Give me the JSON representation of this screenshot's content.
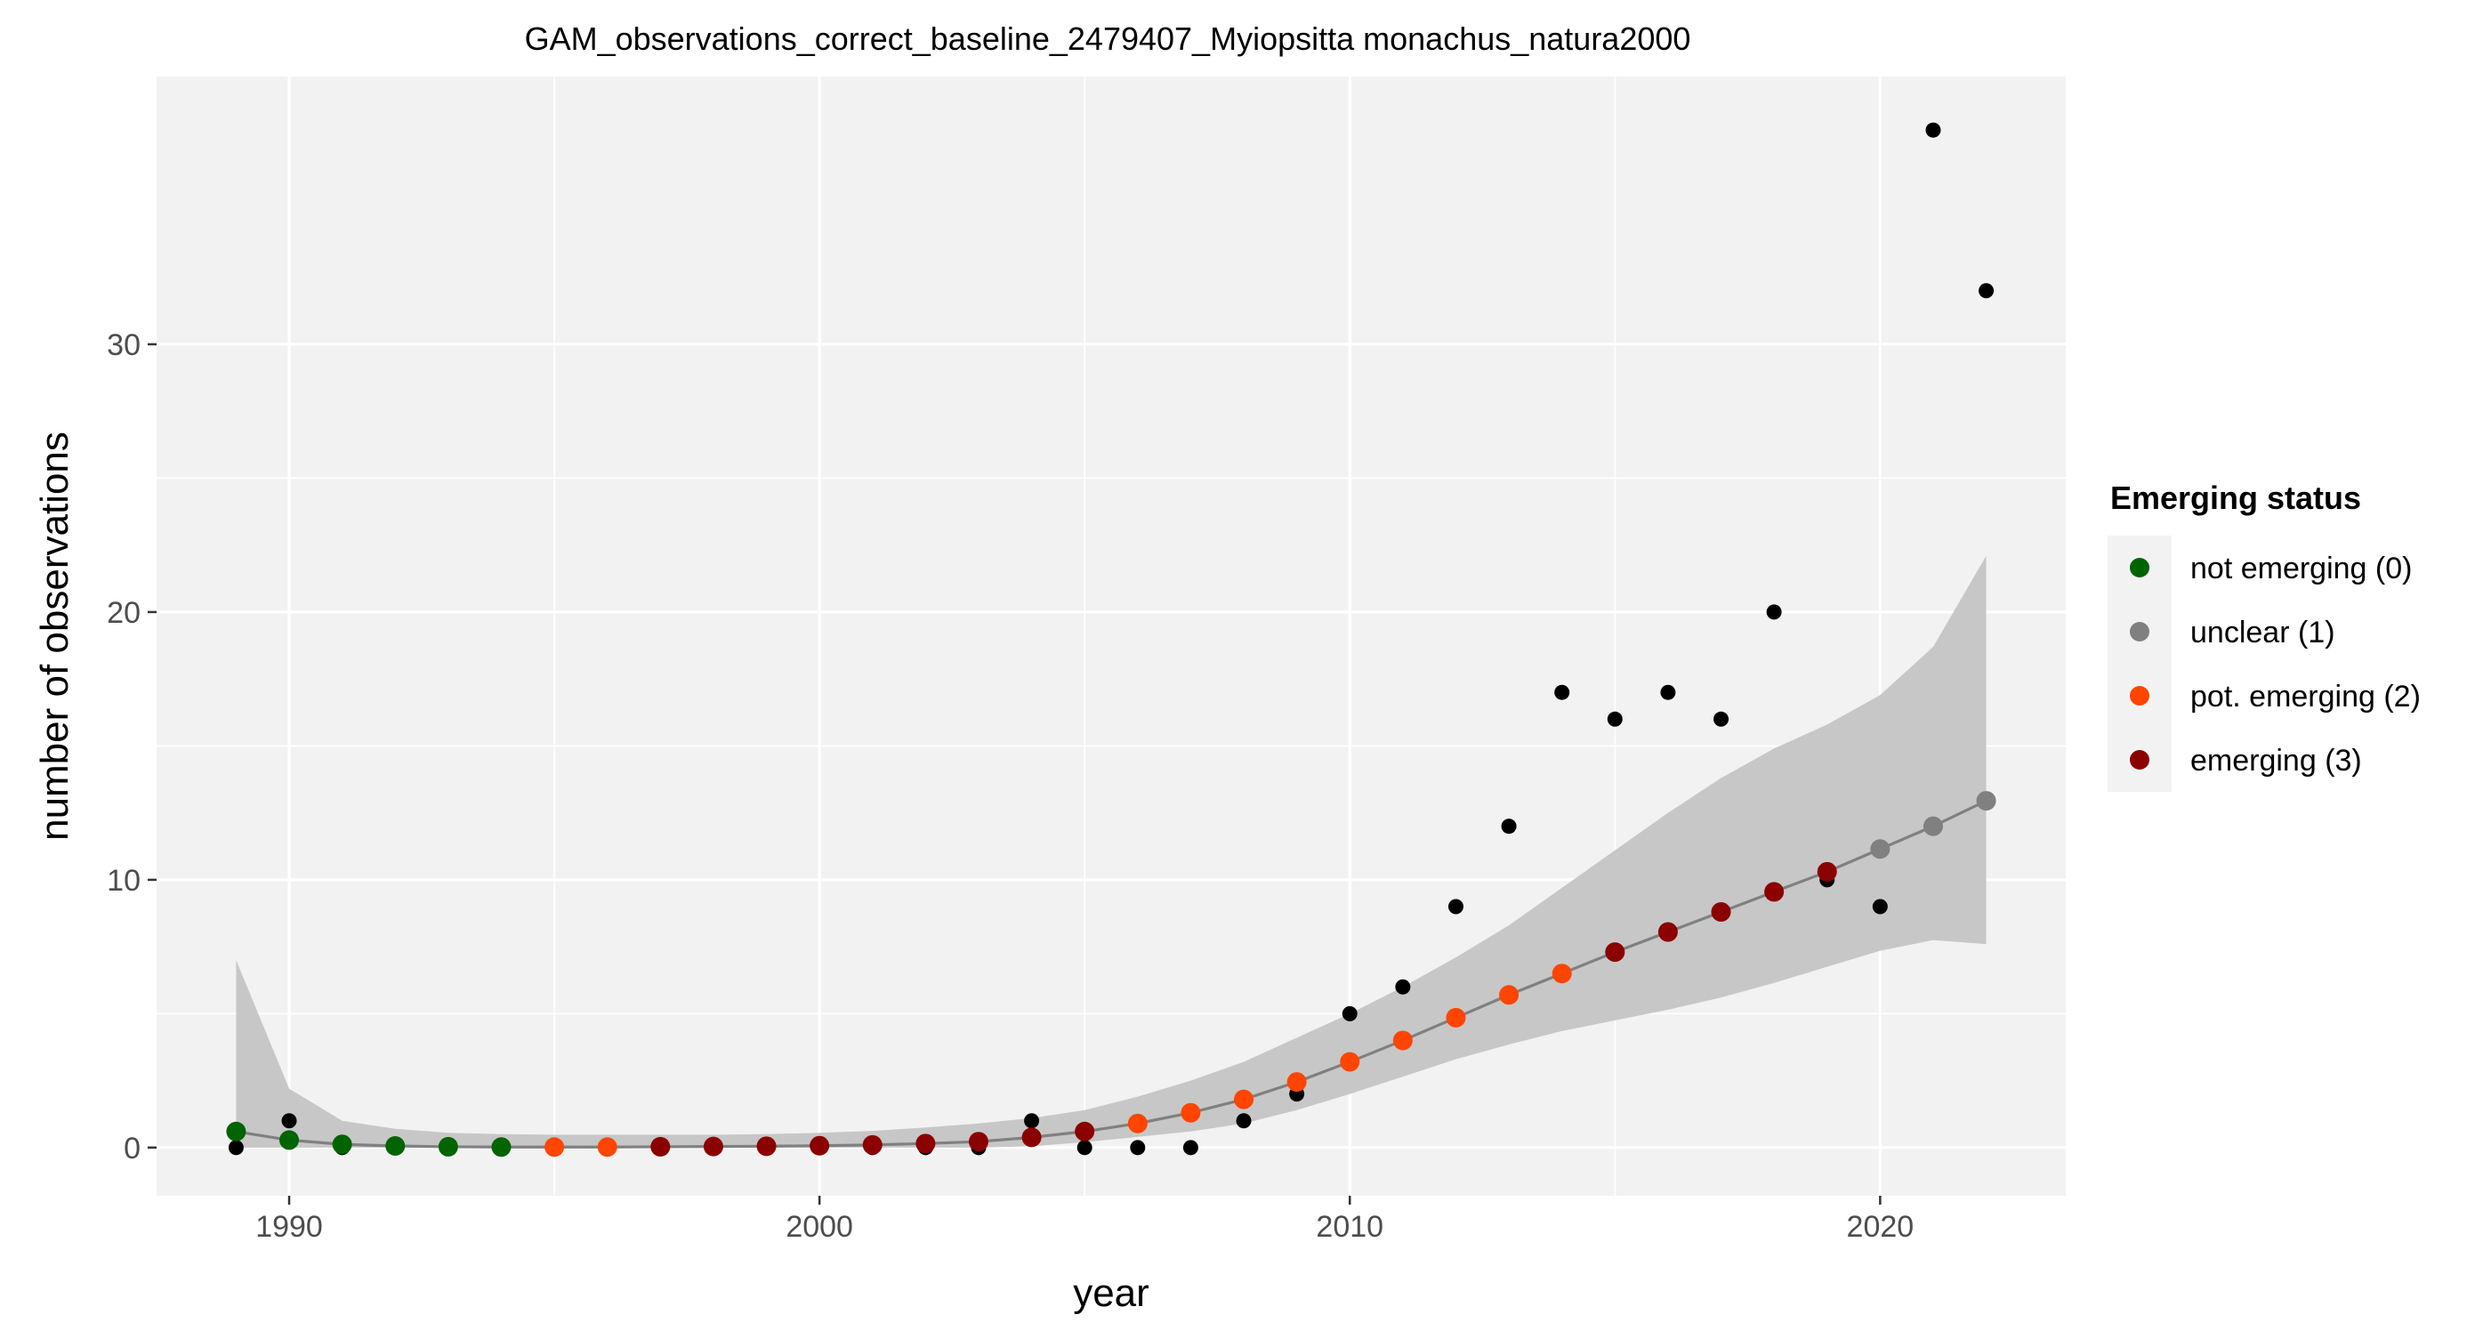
{
  "chart_data": {
    "type": "scatter",
    "title": "GAM_observations_correct_baseline_2479407_Myiopsitta monachus_natura2000",
    "xlabel": "year",
    "ylabel": "number of observations",
    "xlim": [
      1987.5,
      2023.5
    ],
    "ylim": [
      -1.8,
      40
    ],
    "x_ticks": [
      1990,
      2000,
      2010,
      2020
    ],
    "y_ticks": [
      0,
      10,
      20,
      30
    ],
    "grid": true,
    "legend": {
      "title": "Emerging status",
      "position": "right",
      "entries": [
        {
          "label": "not emerging (0)",
          "color": "#006400"
        },
        {
          "label": "unclear (1)",
          "color": "#808080"
        },
        {
          "label": "pot. emerging (2)",
          "color": "#FF4500"
        },
        {
          "label": "emerging (3)",
          "color": "#8B0000"
        }
      ]
    },
    "colors": {
      "panel_background": "#F2F2F2",
      "grid_major": "#FFFFFF",
      "ribbon": "#C4C4C4",
      "fit_line": "#808080",
      "observed_points": "#000000"
    },
    "observed": {
      "x": [
        1989,
        1990,
        1991,
        1992,
        1993,
        1994,
        1995,
        1996,
        1997,
        1998,
        1999,
        2000,
        2001,
        2002,
        2003,
        2004,
        2005,
        2006,
        2007,
        2008,
        2009,
        2010,
        2011,
        2012,
        2013,
        2014,
        2015,
        2016,
        2017,
        2018,
        2019,
        2020,
        2021,
        2022
      ],
      "y": [
        0,
        1,
        0,
        0,
        0,
        0,
        0,
        0,
        0,
        0,
        0,
        0,
        0,
        0,
        0,
        1,
        0,
        0,
        0,
        1,
        2,
        5,
        6,
        9,
        12,
        17,
        16,
        17,
        16,
        20,
        10,
        9,
        38,
        32
      ]
    },
    "fitted": {
      "x": [
        1989,
        1990,
        1991,
        1992,
        1993,
        1994,
        1995,
        1996,
        1997,
        1998,
        1999,
        2000,
        2001,
        2002,
        2003,
        2004,
        2005,
        2006,
        2007,
        2008,
        2009,
        2010,
        2011,
        2012,
        2013,
        2014,
        2015,
        2016,
        2017,
        2018,
        2019,
        2020,
        2021,
        2022
      ],
      "y": [
        0.6,
        0.28,
        0.12,
        0.06,
        0.03,
        0.02,
        0.02,
        0.02,
        0.03,
        0.04,
        0.05,
        0.07,
        0.1,
        0.15,
        0.22,
        0.38,
        0.6,
        0.9,
        1.3,
        1.8,
        2.45,
        3.2,
        4.0,
        4.85,
        5.7,
        6.5,
        7.3,
        8.05,
        8.8,
        9.55,
        10.3,
        11.15,
        12.0,
        12.95
      ],
      "lower": [
        0,
        0,
        0,
        0,
        0,
        0,
        0,
        0,
        0,
        0,
        0,
        0,
        0,
        0,
        0,
        0.05,
        0.2,
        0.4,
        0.6,
        0.9,
        1.4,
        2.0,
        2.65,
        3.3,
        3.85,
        4.35,
        4.75,
        5.15,
        5.6,
        6.15,
        6.75,
        7.35,
        7.75,
        7.6
      ],
      "upper": [
        7.0,
        2.2,
        1.0,
        0.7,
        0.55,
        0.5,
        0.48,
        0.48,
        0.48,
        0.48,
        0.5,
        0.55,
        0.62,
        0.75,
        0.9,
        1.1,
        1.4,
        1.9,
        2.5,
        3.2,
        4.1,
        5.0,
        6.0,
        7.1,
        8.3,
        9.7,
        11.1,
        12.5,
        13.8,
        14.9,
        15.8,
        16.9,
        18.7,
        22.1
      ],
      "status": [
        0,
        0,
        0,
        0,
        0,
        0,
        2,
        2,
        3,
        3,
        3,
        3,
        3,
        3,
        3,
        3,
        3,
        2,
        2,
        2,
        2,
        2,
        2,
        2,
        2,
        2,
        3,
        3,
        3,
        3,
        3,
        1,
        1,
        1
      ]
    }
  }
}
